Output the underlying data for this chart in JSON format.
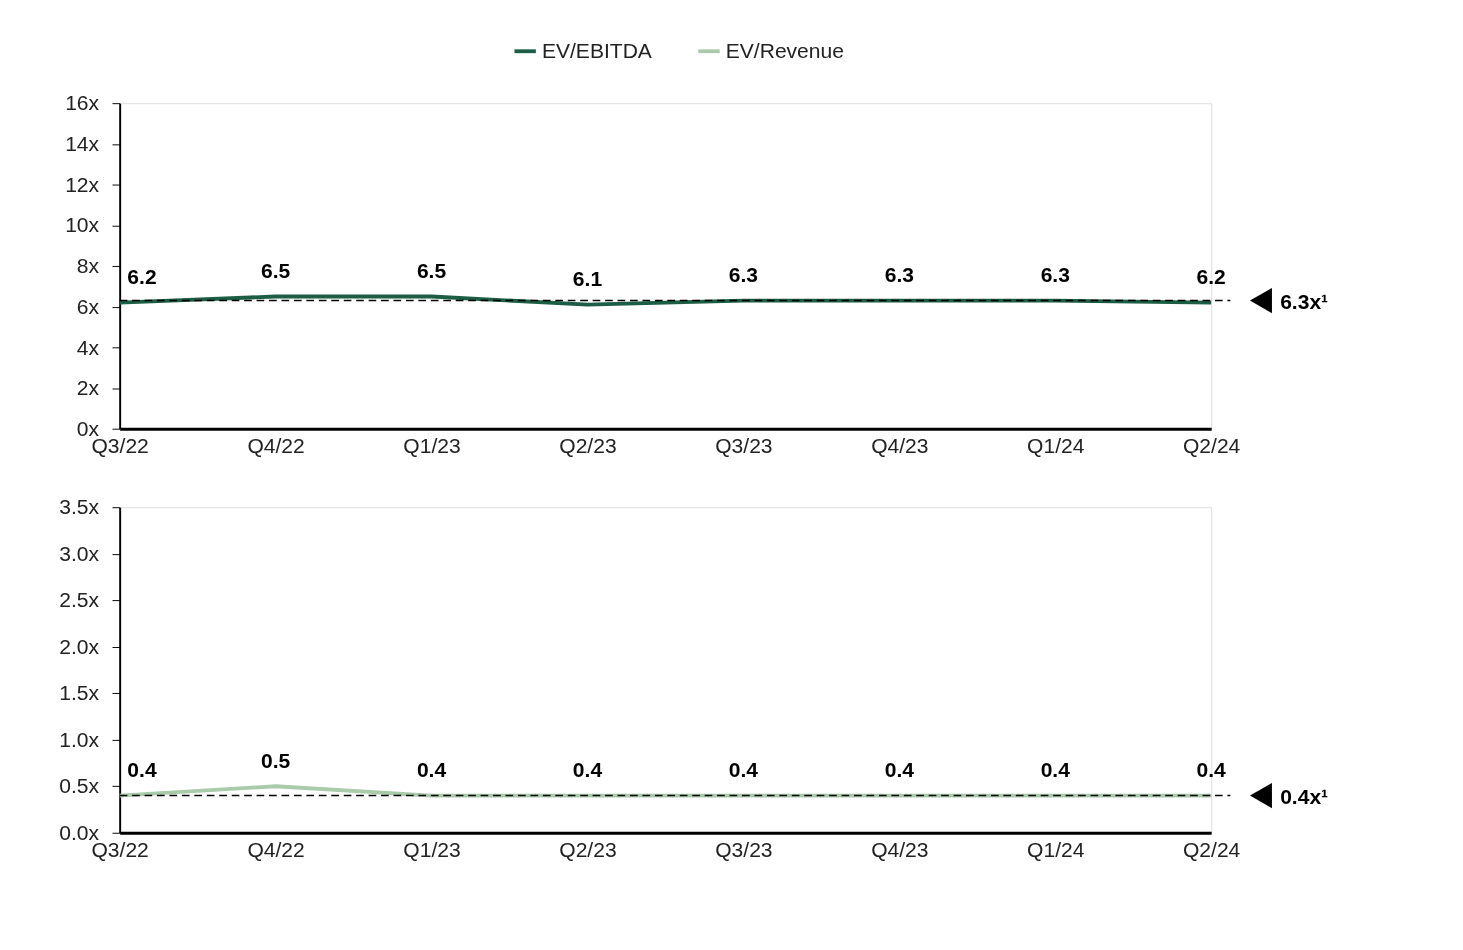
{
  "chart_data": [
    {
      "type": "line",
      "categories": [
        "Q3/22",
        "Q4/22",
        "Q1/23",
        "Q2/23",
        "Q3/23",
        "Q4/23",
        "Q1/24",
        "Q2/24"
      ],
      "series": [
        {
          "name": "EV/EBITDA",
          "color": "#1b5e45",
          "values": [
            6.2,
            6.5,
            6.5,
            6.1,
            6.3,
            6.3,
            6.3,
            6.2
          ]
        }
      ],
      "ylim": [
        0,
        16
      ],
      "yticks": [
        {
          "value": 0,
          "label": "0x"
        },
        {
          "value": 2,
          "label": "2x"
        },
        {
          "value": 4,
          "label": "4x"
        },
        {
          "value": 6,
          "label": "6x"
        },
        {
          "value": 8,
          "label": "8x"
        },
        {
          "value": 10,
          "label": "10x"
        },
        {
          "value": 12,
          "label": "12x"
        },
        {
          "value": 14,
          "label": "14x"
        },
        {
          "value": 16,
          "label": "16x"
        }
      ],
      "ref_lines": [
        {
          "axis": "y",
          "value": 6.3,
          "label": "6.3x¹",
          "line_style": "dashed",
          "color": "#000000"
        }
      ],
      "data_labels": true,
      "legend": "top",
      "grid": false
    },
    {
      "type": "line",
      "categories": [
        "Q3/22",
        "Q4/22",
        "Q1/23",
        "Q2/23",
        "Q3/23",
        "Q4/23",
        "Q1/24",
        "Q2/24"
      ],
      "series": [
        {
          "name": "EV/Revenue",
          "color": "#a9cbaa",
          "values": [
            0.4,
            0.5,
            0.4,
            0.4,
            0.4,
            0.4,
            0.4,
            0.4
          ]
        }
      ],
      "ylim": [
        0,
        3.5
      ],
      "yticks": [
        {
          "value": 0,
          "label": "0.0x"
        },
        {
          "value": 0.5,
          "label": "0.5x"
        },
        {
          "value": 1.0,
          "label": "1.0x"
        },
        {
          "value": 1.5,
          "label": "1.5x"
        },
        {
          "value": 2.0,
          "label": "2.0x"
        },
        {
          "value": 2.5,
          "label": "2.5x"
        },
        {
          "value": 3.0,
          "label": "3.0x"
        },
        {
          "value": 3.5,
          "label": "3.5x"
        }
      ],
      "ref_lines": [
        {
          "axis": "y",
          "value": 0.4,
          "label": "0.4x¹",
          "line_style": "dashed",
          "color": "#000000"
        }
      ],
      "data_labels": true,
      "grid": false
    }
  ]
}
